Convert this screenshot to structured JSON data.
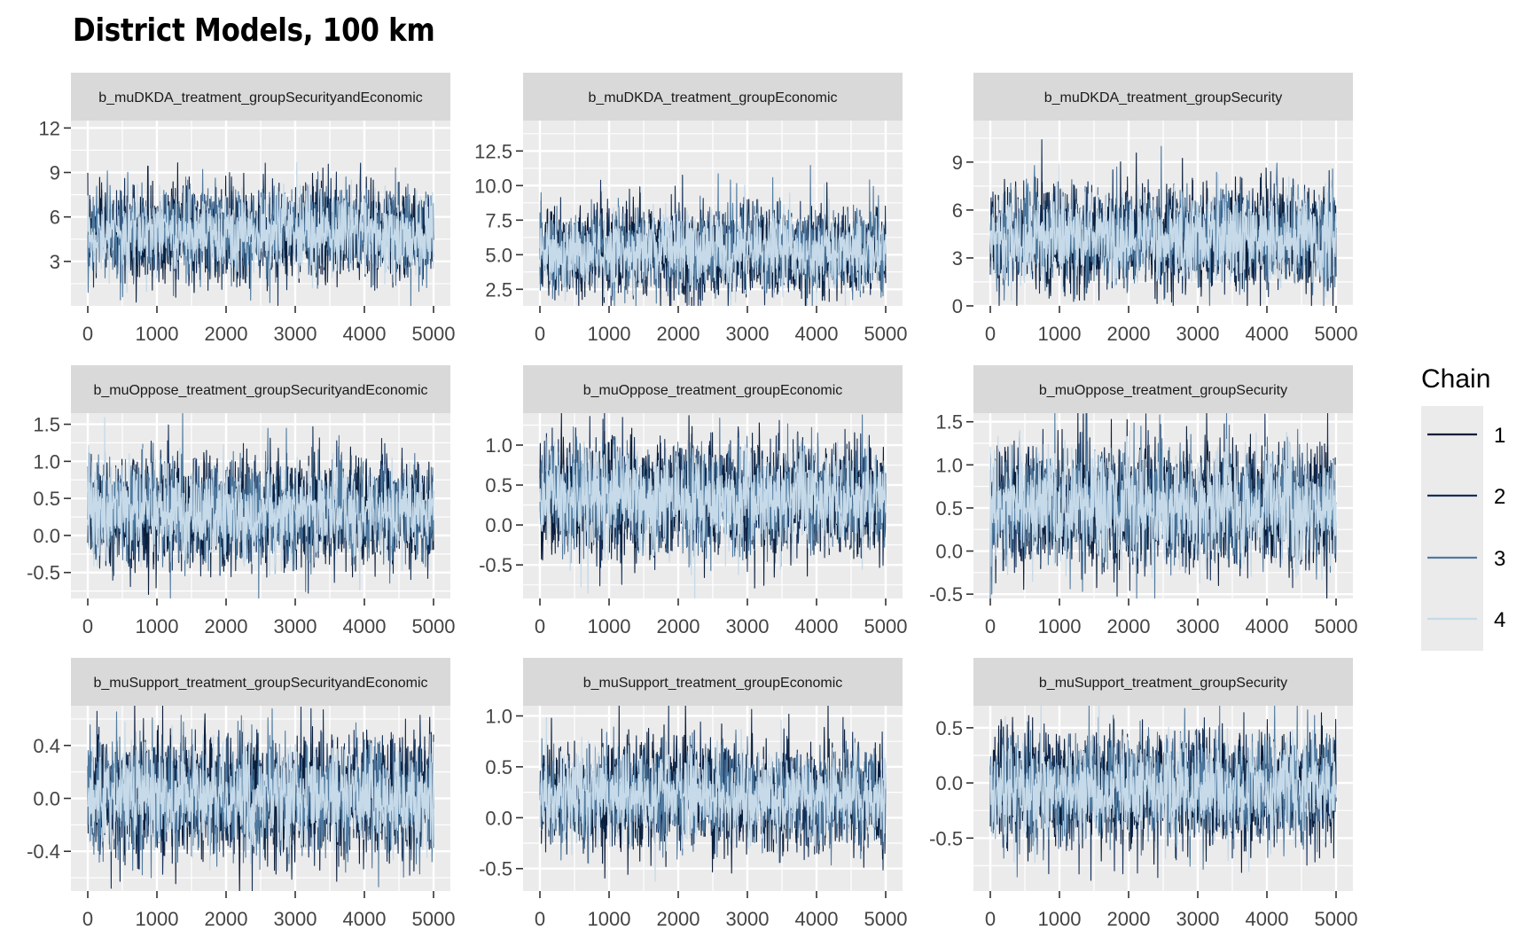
{
  "figure": {
    "title": "District Models, 100 km"
  },
  "legend": {
    "title": "Chain",
    "items": [
      {
        "label": "1",
        "color": "#0a1d3a"
      },
      {
        "label": "2",
        "color": "#14305a"
      },
      {
        "label": "3",
        "color": "#4f7aa0"
      },
      {
        "label": "4",
        "color": "#c6dae9"
      }
    ]
  },
  "chart_data": [
    {
      "type": "line",
      "title": "b_muDKDA_treatment_groupSecurityandEconomic",
      "xlim": [
        0,
        5000
      ],
      "ylim": [
        0.0,
        12.5
      ],
      "xticks": [
        0,
        1000,
        2000,
        3000,
        4000,
        5000
      ],
      "yticks": [
        3,
        6,
        9,
        12
      ],
      "ytick_labels": [
        "3",
        "6",
        "9",
        "12"
      ],
      "center": 4.9,
      "spread": 1.25,
      "series": [
        "1",
        "2",
        "3",
        "4"
      ]
    },
    {
      "type": "line",
      "title": "b_muDKDA_treatment_groupEconomic",
      "xlim": [
        0,
        5000
      ],
      "ylim": [
        1.3,
        14.7
      ],
      "xticks": [
        0,
        1000,
        2000,
        3000,
        4000,
        5000
      ],
      "yticks": [
        2.5,
        5.0,
        7.5,
        10.0,
        12.5
      ],
      "ytick_labels": [
        "2.5",
        "5.0",
        "7.5",
        "10.0",
        "12.5"
      ],
      "center": 5.3,
      "spread": 1.3,
      "series": [
        "1",
        "2",
        "3",
        "4"
      ]
    },
    {
      "type": "line",
      "title": "b_muDKDA_treatment_groupSecurity",
      "xlim": [
        0,
        5000
      ],
      "ylim": [
        0.0,
        11.6
      ],
      "xticks": [
        0,
        1000,
        2000,
        3000,
        4000,
        5000
      ],
      "yticks": [
        0,
        3,
        6,
        9
      ],
      "ytick_labels": [
        "0",
        "3",
        "6",
        "9"
      ],
      "center": 4.3,
      "spread": 1.35,
      "series": [
        "1",
        "2",
        "3",
        "4"
      ]
    },
    {
      "type": "line",
      "title": "b_muOppose_treatment_groupSecurityandEconomic",
      "xlim": [
        0,
        5000
      ],
      "ylim": [
        -0.85,
        1.65
      ],
      "xticks": [
        0,
        1000,
        2000,
        3000,
        4000,
        5000
      ],
      "yticks": [
        -0.5,
        0.0,
        0.5,
        1.0,
        1.5
      ],
      "ytick_labels": [
        "-0.5",
        "0.0",
        "0.5",
        "1.0",
        "1.5"
      ],
      "center": 0.32,
      "spread": 0.3,
      "series": [
        "1",
        "2",
        "3",
        "4"
      ]
    },
    {
      "type": "line",
      "title": "b_muOppose_treatment_groupEconomic",
      "xlim": [
        0,
        5000
      ],
      "ylim": [
        -0.92,
        1.4
      ],
      "xticks": [
        0,
        1000,
        2000,
        3000,
        4000,
        5000
      ],
      "yticks": [
        -0.5,
        0.0,
        0.5,
        1.0
      ],
      "ytick_labels": [
        "-0.5",
        "0.0",
        "0.5",
        "1.0"
      ],
      "center": 0.33,
      "spread": 0.3,
      "series": [
        "1",
        "2",
        "3",
        "4"
      ]
    },
    {
      "type": "line",
      "title": "b_muOppose_treatment_groupSecurity",
      "xlim": [
        0,
        5000
      ],
      "ylim": [
        -0.55,
        1.6
      ],
      "xticks": [
        0,
        1000,
        2000,
        3000,
        4000,
        5000
      ],
      "yticks": [
        -0.5,
        0.0,
        0.5,
        1.0,
        1.5
      ],
      "ytick_labels": [
        "-0.5",
        "0.0",
        "0.5",
        "1.0",
        "1.5"
      ],
      "center": 0.52,
      "spread": 0.3,
      "series": [
        "1",
        "2",
        "3",
        "4"
      ]
    },
    {
      "type": "line",
      "title": "b_muSupport_treatment_groupSecurityandEconomic",
      "xlim": [
        0,
        5000
      ],
      "ylim": [
        -0.7,
        0.7
      ],
      "xticks": [
        0,
        1000,
        2000,
        3000,
        4000,
        5000
      ],
      "yticks": [
        -0.4,
        0.0,
        0.4
      ],
      "ytick_labels": [
        "-0.4",
        "0.0",
        "0.4"
      ],
      "center": 0.01,
      "spread": 0.19,
      "series": [
        "1",
        "2",
        "3",
        "4"
      ]
    },
    {
      "type": "line",
      "title": "b_muSupport_treatment_groupEconomic",
      "xlim": [
        0,
        5000
      ],
      "ylim": [
        -0.72,
        1.1
      ],
      "xticks": [
        0,
        1000,
        2000,
        3000,
        4000,
        5000
      ],
      "yticks": [
        -0.5,
        0.0,
        0.5,
        1.0
      ],
      "ytick_labels": [
        "-0.5",
        "0.0",
        "0.5",
        "1.0"
      ],
      "center": 0.21,
      "spread": 0.21,
      "series": [
        "1",
        "2",
        "3",
        "4"
      ]
    },
    {
      "type": "line",
      "title": "b_muSupport_treatment_groupSecurity",
      "xlim": [
        0,
        5000
      ],
      "ylim": [
        -0.98,
        0.7
      ],
      "xticks": [
        0,
        1000,
        2000,
        3000,
        4000,
        5000
      ],
      "yticks": [
        -0.5,
        0.0,
        0.5
      ],
      "ytick_labels": [
        "-0.5",
        "0.0",
        "0.5"
      ],
      "center": -0.05,
      "spread": 0.2,
      "series": [
        "1",
        "2",
        "3",
        "4"
      ]
    }
  ]
}
